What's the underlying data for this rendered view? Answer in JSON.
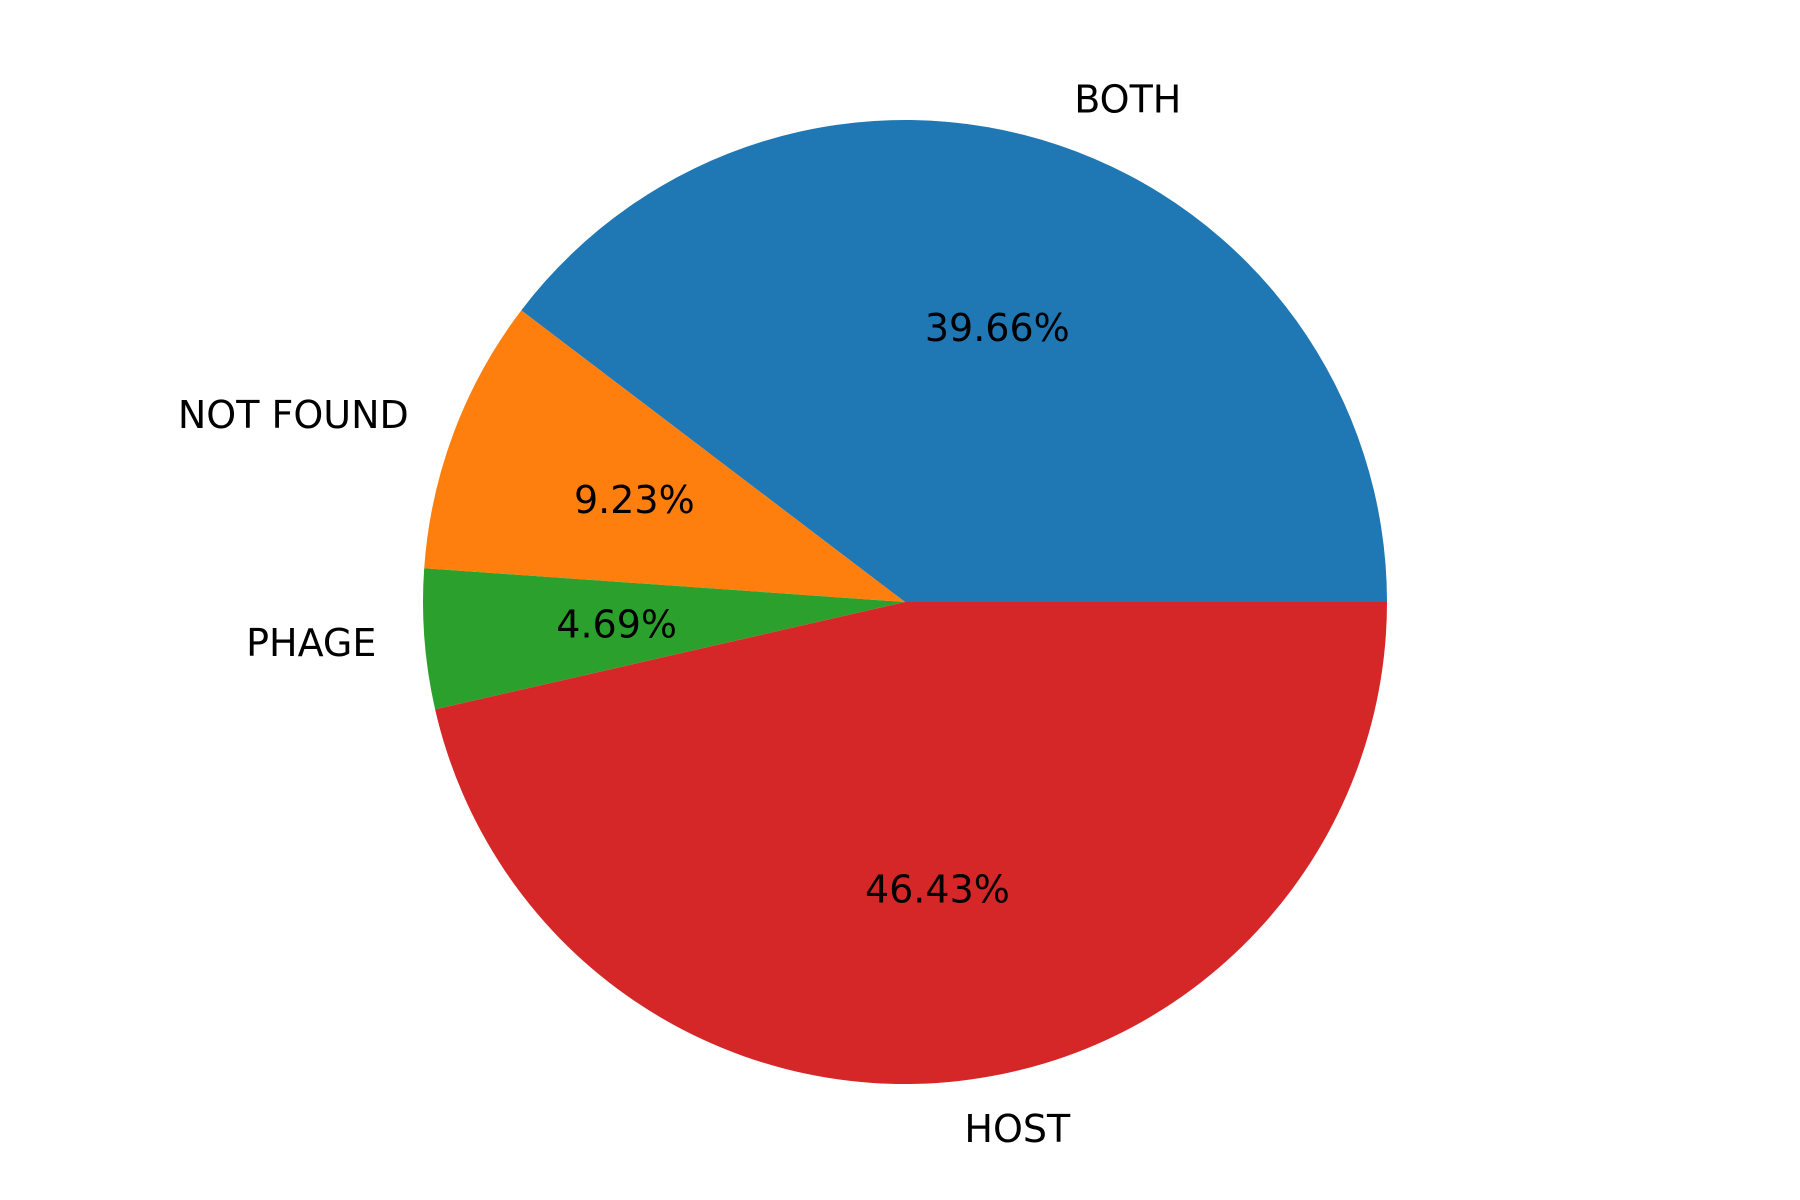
{
  "chart_data": {
    "type": "pie",
    "title": "",
    "start_angle_deg": 0,
    "direction": "counterclockwise",
    "slices": [
      {
        "label": "BOTH",
        "value": 39.66,
        "value_label": "39.66%",
        "color": "#1f77b4"
      },
      {
        "label": "NOT FOUND",
        "value": 9.23,
        "value_label": "9.23%",
        "color": "#ff7f0e"
      },
      {
        "label": "PHAGE",
        "value": 4.69,
        "value_label": "4.69%",
        "color": "#2ca02c"
      },
      {
        "label": "HOST",
        "value": 46.43,
        "value_label": "46.43%",
        "color": "#d62728"
      }
    ]
  }
}
